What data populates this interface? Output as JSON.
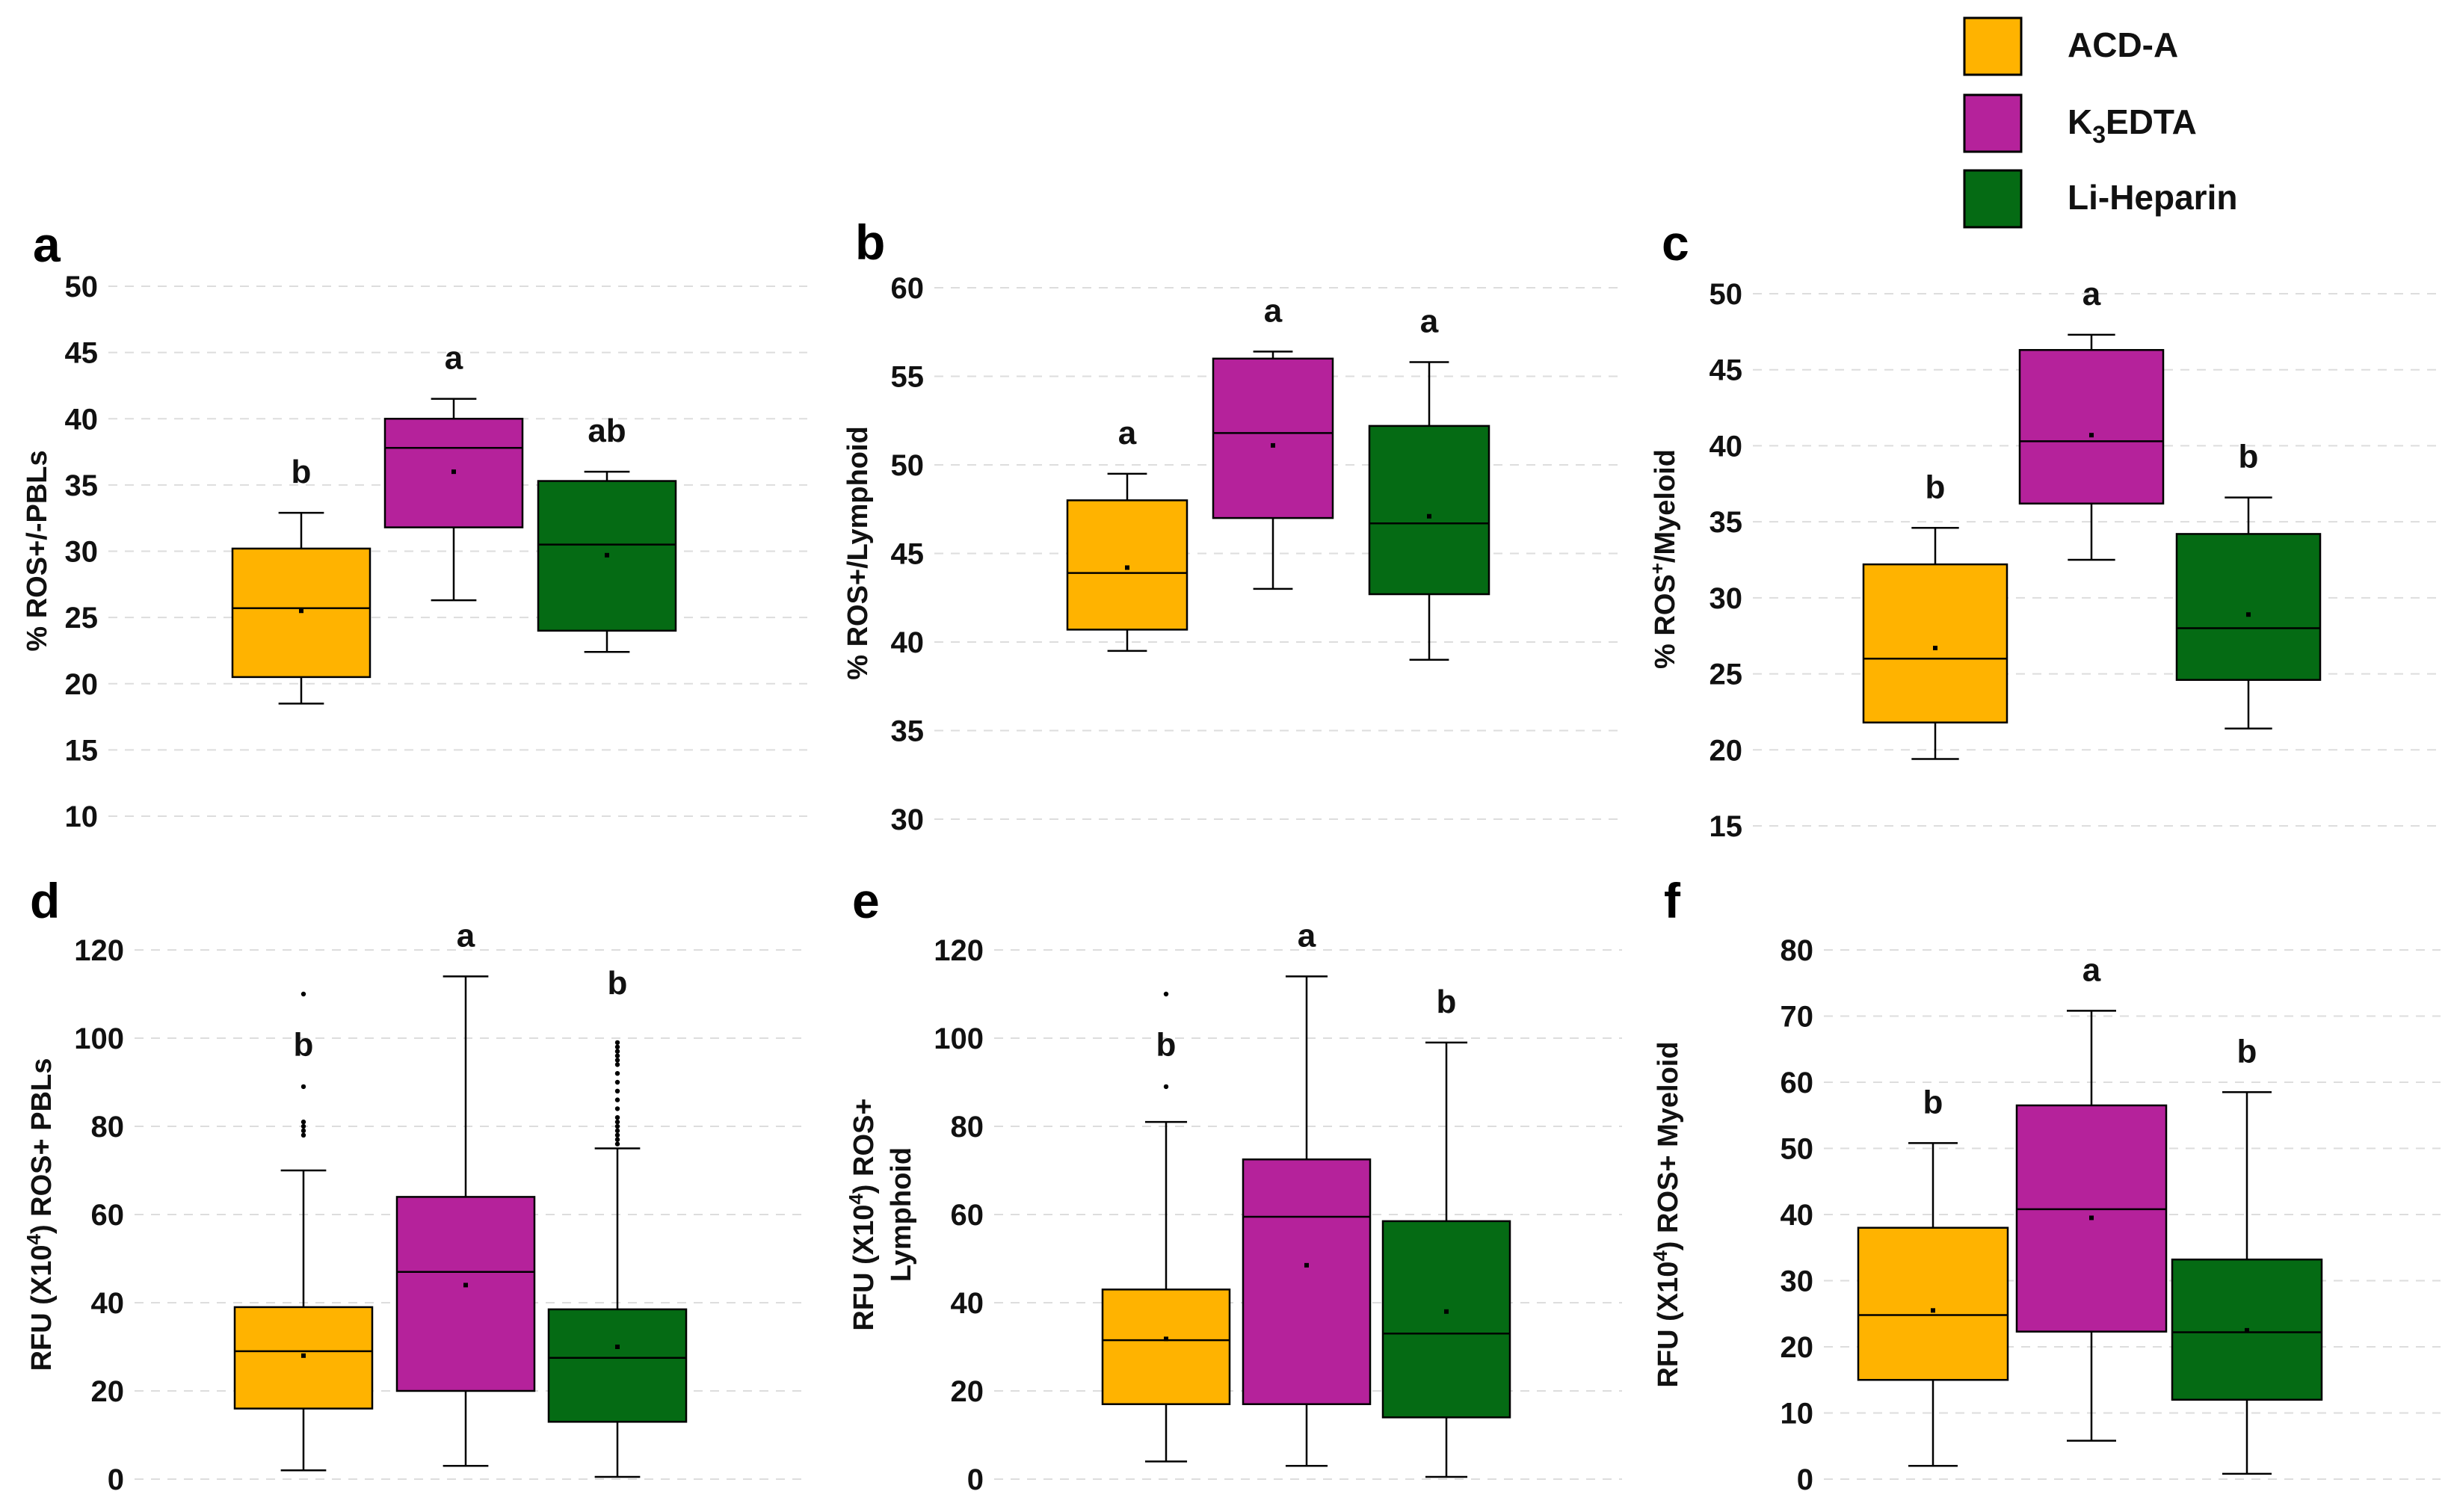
{
  "legend": [
    {
      "name": "ACD-A",
      "color": "#FFB300"
    },
    {
      "name": "K3EDTA",
      "name_main": "K",
      "name_sub": "3",
      "name_rest": "EDTA",
      "color": "#B5229B"
    },
    {
      "name": "Li-Heparin",
      "color": "#056B14"
    }
  ],
  "chart_data": [
    {
      "type": "box",
      "panel_label": "a",
      "ylabel": "% ROS+/-PBLs",
      "ylim": [
        10,
        50
      ],
      "yticks": [
        10,
        15,
        20,
        25,
        30,
        35,
        40,
        45,
        50
      ],
      "series": [
        {
          "name": "ACD-A",
          "whisker_low": 18.5,
          "q1": 20.5,
          "median": 25.7,
          "mean": 25.5,
          "q3": 30.2,
          "whisker_high": 32.9,
          "outliers": [],
          "letter": "b"
        },
        {
          "name": "K3EDTA",
          "whisker_low": 26.3,
          "q1": 31.8,
          "median": 37.8,
          "mean": 36.0,
          "q3": 40.0,
          "whisker_high": 41.5,
          "outliers": [],
          "letter": "a"
        },
        {
          "name": "Li-Heparin",
          "whisker_low": 22.4,
          "q1": 24.0,
          "median": 30.5,
          "mean": 29.7,
          "q3": 35.3,
          "whisker_high": 36.0,
          "outliers": [],
          "letter": "ab"
        }
      ]
    },
    {
      "type": "box",
      "panel_label": "b",
      "ylabel": "% ROS+/Lymphoid",
      "ylim": [
        30,
        60
      ],
      "yticks": [
        30,
        35,
        40,
        45,
        50,
        55,
        60
      ],
      "series": [
        {
          "name": "ACD-A",
          "whisker_low": 39.5,
          "q1": 40.7,
          "median": 43.9,
          "mean": 44.2,
          "q3": 48.0,
          "whisker_high": 49.5,
          "outliers": [],
          "letter": "a"
        },
        {
          "name": "K3EDTA",
          "whisker_low": 43.0,
          "q1": 47.0,
          "median": 51.8,
          "mean": 51.1,
          "q3": 56.0,
          "whisker_high": 56.4,
          "outliers": [],
          "letter": "a"
        },
        {
          "name": "Li-Heparin",
          "whisker_low": 39.0,
          "q1": 42.7,
          "median": 46.7,
          "mean": 47.1,
          "q3": 52.2,
          "whisker_high": 55.8,
          "outliers": [],
          "letter": "a"
        }
      ]
    },
    {
      "type": "box",
      "panel_label": "c",
      "ylabel": "% ROS",
      "ylabel_sup": "+",
      "ylabel_rest": "/Myeloid",
      "ylim": [
        15,
        50
      ],
      "yticks": [
        15,
        20,
        25,
        30,
        35,
        40,
        45,
        50
      ],
      "series": [
        {
          "name": "ACD-A",
          "whisker_low": 19.4,
          "q1": 21.8,
          "median": 26.0,
          "mean": 26.7,
          "q3": 32.2,
          "whisker_high": 34.6,
          "outliers": [],
          "letter": "b"
        },
        {
          "name": "K3EDTA",
          "whisker_low": 32.5,
          "q1": 36.2,
          "median": 40.3,
          "mean": 40.7,
          "q3": 46.3,
          "whisker_high": 47.3,
          "outliers": [],
          "letter": "a"
        },
        {
          "name": "Li-Heparin",
          "whisker_low": 21.4,
          "q1": 24.6,
          "median": 28.0,
          "mean": 28.9,
          "q3": 34.2,
          "whisker_high": 36.6,
          "outliers": [],
          "letter": "b"
        }
      ]
    },
    {
      "type": "box",
      "panel_label": "d",
      "ylabel": "RFU (X10",
      "ylabel_sup": "4",
      "ylabel_rest": ") ROS+ PBLs",
      "ylim": [
        0,
        120
      ],
      "yticks": [
        0,
        20,
        40,
        60,
        80,
        100,
        120
      ],
      "series": [
        {
          "name": "ACD-A",
          "whisker_low": 2,
          "q1": 16,
          "median": 29,
          "mean": 28,
          "q3": 39,
          "whisker_high": 70,
          "outliers": [
            78,
            79,
            80,
            81,
            89,
            110
          ],
          "letter": "b"
        },
        {
          "name": "K3EDTA",
          "whisker_low": 3,
          "q1": 20,
          "median": 47,
          "mean": 44,
          "q3": 64,
          "whisker_high": 114,
          "outliers": [],
          "letter": "a"
        },
        {
          "name": "Li-Heparin",
          "whisker_low": 0.5,
          "q1": 13,
          "median": 27.5,
          "mean": 30,
          "q3": 38.5,
          "whisker_high": 75,
          "outliers": [
            76,
            77,
            78,
            79,
            80,
            81,
            82,
            84,
            86,
            88,
            90,
            92,
            94,
            95,
            96,
            97,
            98,
            99
          ],
          "letter": "b"
        }
      ]
    },
    {
      "type": "box",
      "panel_label": "e",
      "ylabel": "RFU (X10",
      "ylabel_sup": "4",
      "ylabel_rest": ") ROS+",
      "ylabel_line2": "Lymphoid",
      "ylim": [
        0,
        120
      ],
      "yticks": [
        0,
        20,
        40,
        60,
        80,
        100,
        120
      ],
      "series": [
        {
          "name": "ACD-A",
          "whisker_low": 4,
          "q1": 17,
          "median": 31.5,
          "mean": 31.8,
          "q3": 43,
          "whisker_high": 81,
          "outliers": [
            89,
            110
          ],
          "letter": "b"
        },
        {
          "name": "K3EDTA",
          "whisker_low": 3,
          "q1": 17,
          "median": 59.5,
          "mean": 48.5,
          "q3": 72.5,
          "whisker_high": 114,
          "outliers": [],
          "letter": "a"
        },
        {
          "name": "Li-Heparin",
          "whisker_low": 0.5,
          "q1": 14,
          "median": 33,
          "mean": 38,
          "q3": 58.5,
          "whisker_high": 99,
          "outliers": [],
          "letter": "b"
        }
      ]
    },
    {
      "type": "box",
      "panel_label": "f",
      "ylabel": "RFU (X10",
      "ylabel_sup": "4",
      "ylabel_rest": ") ROS+ Myeloid",
      "ylim": [
        0,
        80
      ],
      "yticks": [
        0,
        10,
        20,
        30,
        40,
        50,
        60,
        70,
        80
      ],
      "series": [
        {
          "name": "ACD-A",
          "whisker_low": 2,
          "q1": 15,
          "median": 24.8,
          "mean": 25.5,
          "q3": 38,
          "whisker_high": 50.8,
          "outliers": [],
          "letter": "b"
        },
        {
          "name": "K3EDTA",
          "whisker_low": 5.8,
          "q1": 22.3,
          "median": 40.8,
          "mean": 39.5,
          "q3": 56.5,
          "whisker_high": 70.8,
          "outliers": [],
          "letter": "a"
        },
        {
          "name": "Li-Heparin",
          "whisker_low": 0.8,
          "q1": 12,
          "median": 22.2,
          "mean": 22.5,
          "q3": 33.2,
          "whisker_high": 58.5,
          "outliers": [],
          "letter": "b"
        }
      ]
    }
  ]
}
